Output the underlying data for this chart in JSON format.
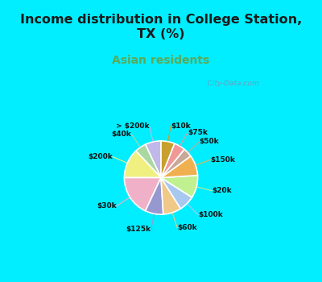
{
  "title": "Income distribution in College Station,\nTX (%)",
  "subtitle": "Asian residents",
  "title_color": "#1a1a1a",
  "subtitle_color": "#5aaa5a",
  "background_color": "#00eeff",
  "chart_bg_from": "#e0f5e0",
  "chart_bg_to": "#f0fff8",
  "labels": [
    "> $200k",
    "$40k",
    "$200k",
    "$30k",
    "$125k",
    "$60k",
    "$100k",
    "$20k",
    "$150k",
    "$50k",
    "$75k",
    "$10k"
  ],
  "values": [
    7,
    5,
    13,
    18,
    8,
    8,
    7,
    10,
    9,
    4,
    5,
    6
  ],
  "colors": [
    "#c0b8e8",
    "#aad8a0",
    "#f0f080",
    "#f0b0c8",
    "#9898d0",
    "#f0c888",
    "#a8c8f0",
    "#c0f090",
    "#f0b050",
    "#c8a898",
    "#f09898",
    "#c8a030"
  ],
  "startangle": 90,
  "watermark": "   City-Data.com"
}
